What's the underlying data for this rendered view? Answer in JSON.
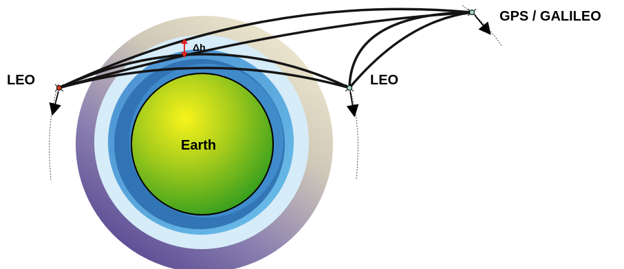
{
  "labels": {
    "leo_left": "LEO",
    "leo_right": "LEO",
    "gps_galileo": "GPS / GALILEO",
    "earth": "Earth",
    "delta_h": "Δh"
  },
  "colors": {
    "earth_center": "#f4f21a",
    "earth_mid": "#8cc21a",
    "earth_edge": "#2f9e1e",
    "inner_shell": "#2d70b2",
    "mid_shell": "#5fb0e4",
    "outer_shell": "#d6ecf8",
    "atmosphere_gold": "#e8dfb6",
    "atmosphere_purple": "#6a5a9e",
    "ray": "#141414",
    "delta_arrow": "#e02020",
    "satellite_leo_left": "#d83a1a"
  },
  "icons": {
    "satellite_leo_left": "satellite-dot-icon",
    "satellite_leo_right": "satellite-dot-icon",
    "satellite_gps": "satellite-dot-icon",
    "velocity_arrow": "arrow-down-icon"
  }
}
